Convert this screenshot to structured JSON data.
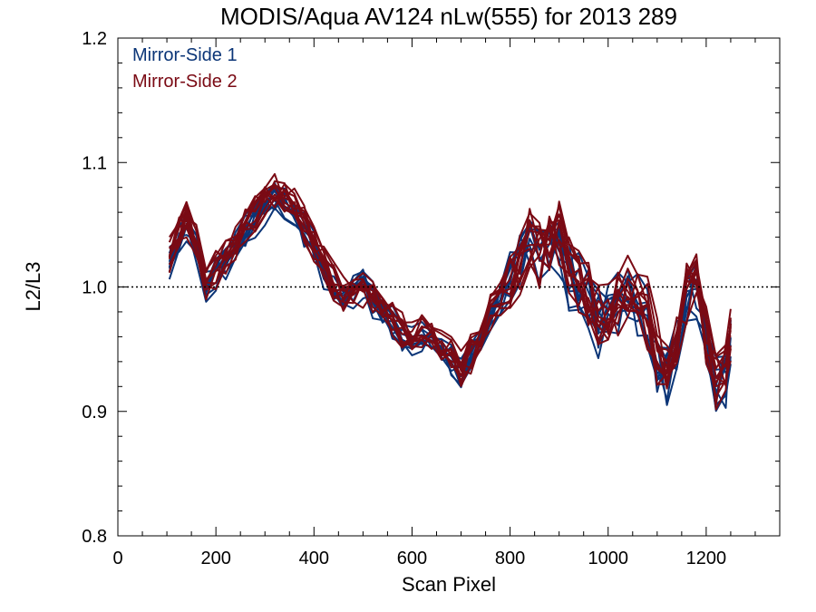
{
  "chart_data": {
    "type": "line",
    "title": "MODIS/Aqua AV124 nLw(555) for 2013 289",
    "xlabel": "Scan Pixel",
    "ylabel": "L2/L3",
    "xlim": [
      0,
      1350
    ],
    "ylim": [
      0.8,
      1.2
    ],
    "xticks": [
      0,
      200,
      400,
      600,
      800,
      1000,
      1200
    ],
    "xtick_labels": [
      "0",
      "200",
      "400",
      "600",
      "800",
      "1000",
      "1200"
    ],
    "yticks": [
      0.8,
      0.9,
      1.0,
      1.1,
      1.2
    ],
    "ytick_labels": [
      "0.8",
      "0.9",
      "1.0",
      "1.1",
      "1.2"
    ],
    "reference_line": {
      "y": 1.0,
      "style": "dotted"
    },
    "grid": false,
    "legend": {
      "placement": "top-left",
      "entries": [
        "Mirror-Side 1",
        "Mirror-Side 2"
      ]
    },
    "x": [
      105,
      125,
      140,
      160,
      180,
      200,
      220,
      240,
      260,
      280,
      300,
      320,
      340,
      360,
      380,
      400,
      420,
      440,
      460,
      480,
      500,
      520,
      540,
      560,
      580,
      600,
      620,
      640,
      660,
      680,
      700,
      720,
      740,
      760,
      780,
      800,
      820,
      840,
      860,
      880,
      900,
      920,
      940,
      960,
      980,
      1000,
      1020,
      1040,
      1060,
      1080,
      1100,
      1120,
      1140,
      1160,
      1180,
      1200,
      1220,
      1240,
      1250
    ],
    "series": [
      {
        "name": "Mirror-Side 1",
        "color": "#0b3577",
        "values": [
          1.02,
          1.04,
          1.05,
          1.03,
          1.0,
          1.01,
          1.02,
          1.03,
          1.045,
          1.055,
          1.065,
          1.07,
          1.068,
          1.06,
          1.045,
          1.03,
          1.015,
          1.0,
          0.99,
          0.995,
          1.0,
          0.99,
          0.98,
          0.97,
          0.96,
          0.955,
          0.96,
          0.955,
          0.95,
          0.94,
          0.93,
          0.945,
          0.96,
          0.98,
          0.99,
          1.0,
          1.02,
          1.035,
          1.025,
          1.03,
          1.035,
          1.01,
          1.0,
          0.99,
          0.97,
          0.975,
          0.985,
          0.995,
          0.99,
          0.975,
          0.94,
          0.93,
          0.95,
          0.99,
          1.0,
          0.96,
          0.92,
          0.93,
          0.955
        ],
        "traces": 10
      },
      {
        "name": "Mirror-Side 2",
        "color": "#7a0a14",
        "values": [
          1.025,
          1.045,
          1.055,
          1.035,
          1.005,
          1.015,
          1.025,
          1.035,
          1.05,
          1.06,
          1.07,
          1.075,
          1.072,
          1.065,
          1.05,
          1.035,
          1.02,
          1.005,
          0.995,
          1.0,
          1.0,
          0.995,
          0.985,
          0.975,
          0.965,
          0.96,
          0.962,
          0.958,
          0.952,
          0.945,
          0.935,
          0.948,
          0.962,
          0.982,
          0.992,
          1.003,
          1.022,
          1.038,
          1.03,
          1.035,
          1.04,
          1.015,
          1.003,
          0.993,
          0.973,
          0.978,
          0.988,
          0.998,
          0.993,
          0.978,
          0.945,
          0.935,
          0.955,
          0.995,
          1.005,
          0.965,
          0.925,
          0.935,
          0.96
        ],
        "traces": 12
      }
    ]
  }
}
